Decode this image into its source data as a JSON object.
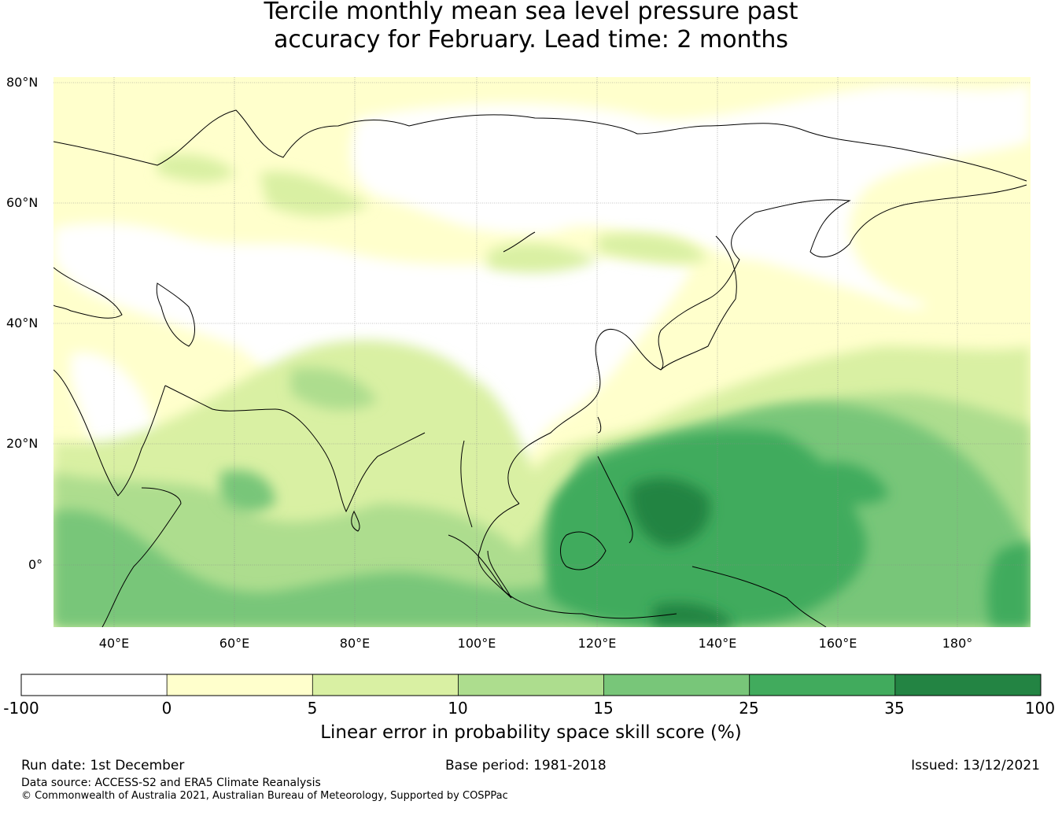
{
  "title_lines": [
    "Tercile monthly mean sea level pressure past",
    "accuracy for February. Lead time: 2 months"
  ],
  "map": {
    "lon_ticks": [
      "40°E",
      "60°E",
      "80°E",
      "100°E",
      "120°E",
      "140°E",
      "160°E",
      "180°"
    ],
    "lat_ticks": [
      "80°N",
      "60°N",
      "40°N",
      "20°N",
      "0°"
    ],
    "lon_range": [
      30,
      192
    ],
    "lat_range": [
      -10,
      81
    ]
  },
  "colorbar": {
    "ticks": [
      "-100",
      "0",
      "5",
      "10",
      "15",
      "25",
      "35",
      "100"
    ],
    "colors": [
      "#ffffff",
      "#ffffcc",
      "#d9f0a3",
      "#addd8e",
      "#78c679",
      "#41ab5d",
      "#238443"
    ],
    "label": "Linear error in probability space skill score (%)"
  },
  "footer": {
    "run_date": "Run date: 1st December",
    "base_period": "Base period: 1981-2018",
    "issued": "Issued: 13/12/2021",
    "data_source": "Data source: ACCESS-S2 and ERA5 Climate Reanalysis",
    "copyright": "© Commonwealth of Australia 2021, Australian Bureau of Meteorology, Supported by COSPPac"
  }
}
